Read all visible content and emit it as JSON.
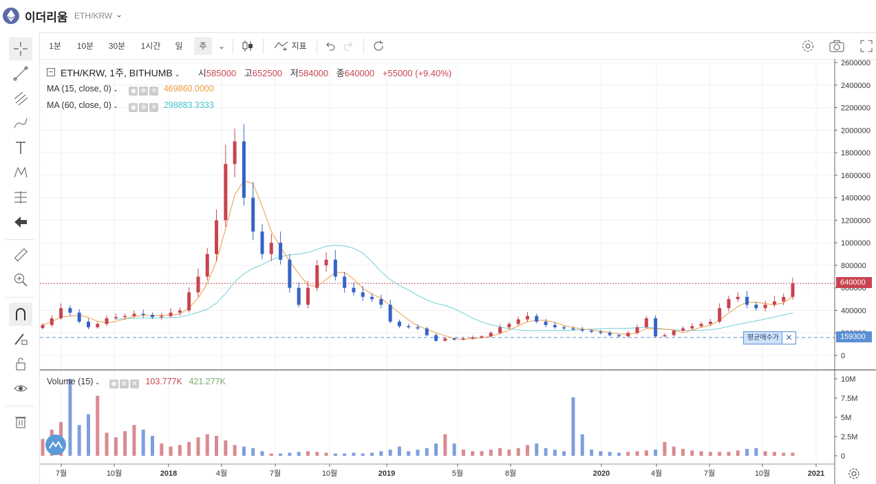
{
  "header": {
    "coin_name": "이더리움",
    "pair": "ETH/KRW"
  },
  "toolbar": {
    "intervals": [
      "1분",
      "10분",
      "30분",
      "1시간",
      "일",
      "주"
    ],
    "selected_interval": "주",
    "indicator_label": "지표"
  },
  "main_legend": {
    "title": "ETH/KRW, 1주, BITHUMB",
    "open_label": "시",
    "open": "585000",
    "high_label": "고",
    "high": "652500",
    "low_label": "저",
    "low": "584000",
    "close_label": "종",
    "close": "640000",
    "change": "+55000 (+9.40%)"
  },
  "ma15": {
    "label": "MA (15, close, 0)",
    "value": "469860.0000"
  },
  "ma60": {
    "label": "MA (60, close, 0)",
    "value": "298883.3333"
  },
  "volume_legend": {
    "label": "Volume (15)",
    "value1": "103.777K",
    "value2": "421.277K"
  },
  "price_tags": {
    "last": "640000",
    "avg": "159300"
  },
  "avg_label": "평균매수가",
  "colors": {
    "up": "#c8434f",
    "down": "#3563c8",
    "ma15": "#f09a3e",
    "ma60": "#6dd0d8",
    "avg_line": "#5a8fd6"
  },
  "chart_data": {
    "type": "candlestick",
    "y_ticks": [
      "0",
      "200000",
      "400000",
      "600000",
      "800000",
      "1000000",
      "1200000",
      "1400000",
      "1600000",
      "1800000",
      "2000000",
      "2200000",
      "2400000",
      "2600000"
    ],
    "volume_ticks": [
      "0",
      "2.5M",
      "5M",
      "7.5M",
      "10M"
    ],
    "x_ticks": [
      "7월",
      "10월",
      "2018",
      "4월",
      "7월",
      "10월",
      "2019",
      "5월",
      "8월",
      "2020",
      "4월",
      "7월",
      "10월",
      "2021"
    ],
    "last_price": 640000,
    "avg_price": 159300,
    "close_series_approx": [
      270000,
      330000,
      420000,
      380000,
      300000,
      250000,
      280000,
      330000,
      340000,
      350000,
      370000,
      360000,
      340000,
      350000,
      380000,
      400000,
      560000,
      700000,
      900000,
      1200000,
      1700000,
      1900000,
      1400000,
      1100000,
      900000,
      1000000,
      850000,
      600000,
      450000,
      600000,
      800000,
      850000,
      700000,
      600000,
      560000,
      520000,
      500000,
      450000,
      300000,
      260000,
      250000,
      240000,
      180000,
      130000,
      150000,
      140000,
      150000,
      160000,
      170000,
      200000,
      250000,
      280000,
      320000,
      350000,
      300000,
      270000,
      250000,
      240000,
      230000,
      220000,
      210000,
      200000,
      180000,
      170000,
      200000,
      250000,
      330000,
      170000,
      180000,
      220000,
      240000,
      260000,
      280000,
      300000,
      420000,
      500000,
      520000,
      450000,
      420000,
      450000,
      480000,
      520000,
      640000
    ],
    "volume_series_approx": [
      2.2,
      3.4,
      4.4,
      10.0,
      4.0,
      5.4,
      7.8,
      3.0,
      2.4,
      3.2,
      4.0,
      3.4,
      2.6,
      1.6,
      1.2,
      1.4,
      1.8,
      2.4,
      2.8,
      2.6,
      2.0,
      1.4,
      1.2,
      1.0,
      0.6,
      0.3,
      0.3,
      0.4,
      0.5,
      0.6,
      0.5,
      0.4,
      0.3,
      0.3,
      0.4,
      0.3,
      0.4,
      0.6,
      0.8,
      1.2,
      0.6,
      0.8,
      1.0,
      1.6,
      2.8,
      1.6,
      0.8,
      0.6,
      0.6,
      0.8,
      1.0,
      0.8,
      1.0,
      1.4,
      1.6,
      1.0,
      0.8,
      0.6,
      7.6,
      2.8,
      0.8,
      0.6,
      0.5,
      0.4,
      0.5,
      0.6,
      0.7,
      0.8,
      1.8,
      1.2,
      0.9,
      0.7,
      0.6,
      0.5,
      0.5,
      0.5,
      0.7,
      0.9,
      1.0,
      0.6,
      0.5,
      0.4,
      0.4
    ]
  }
}
